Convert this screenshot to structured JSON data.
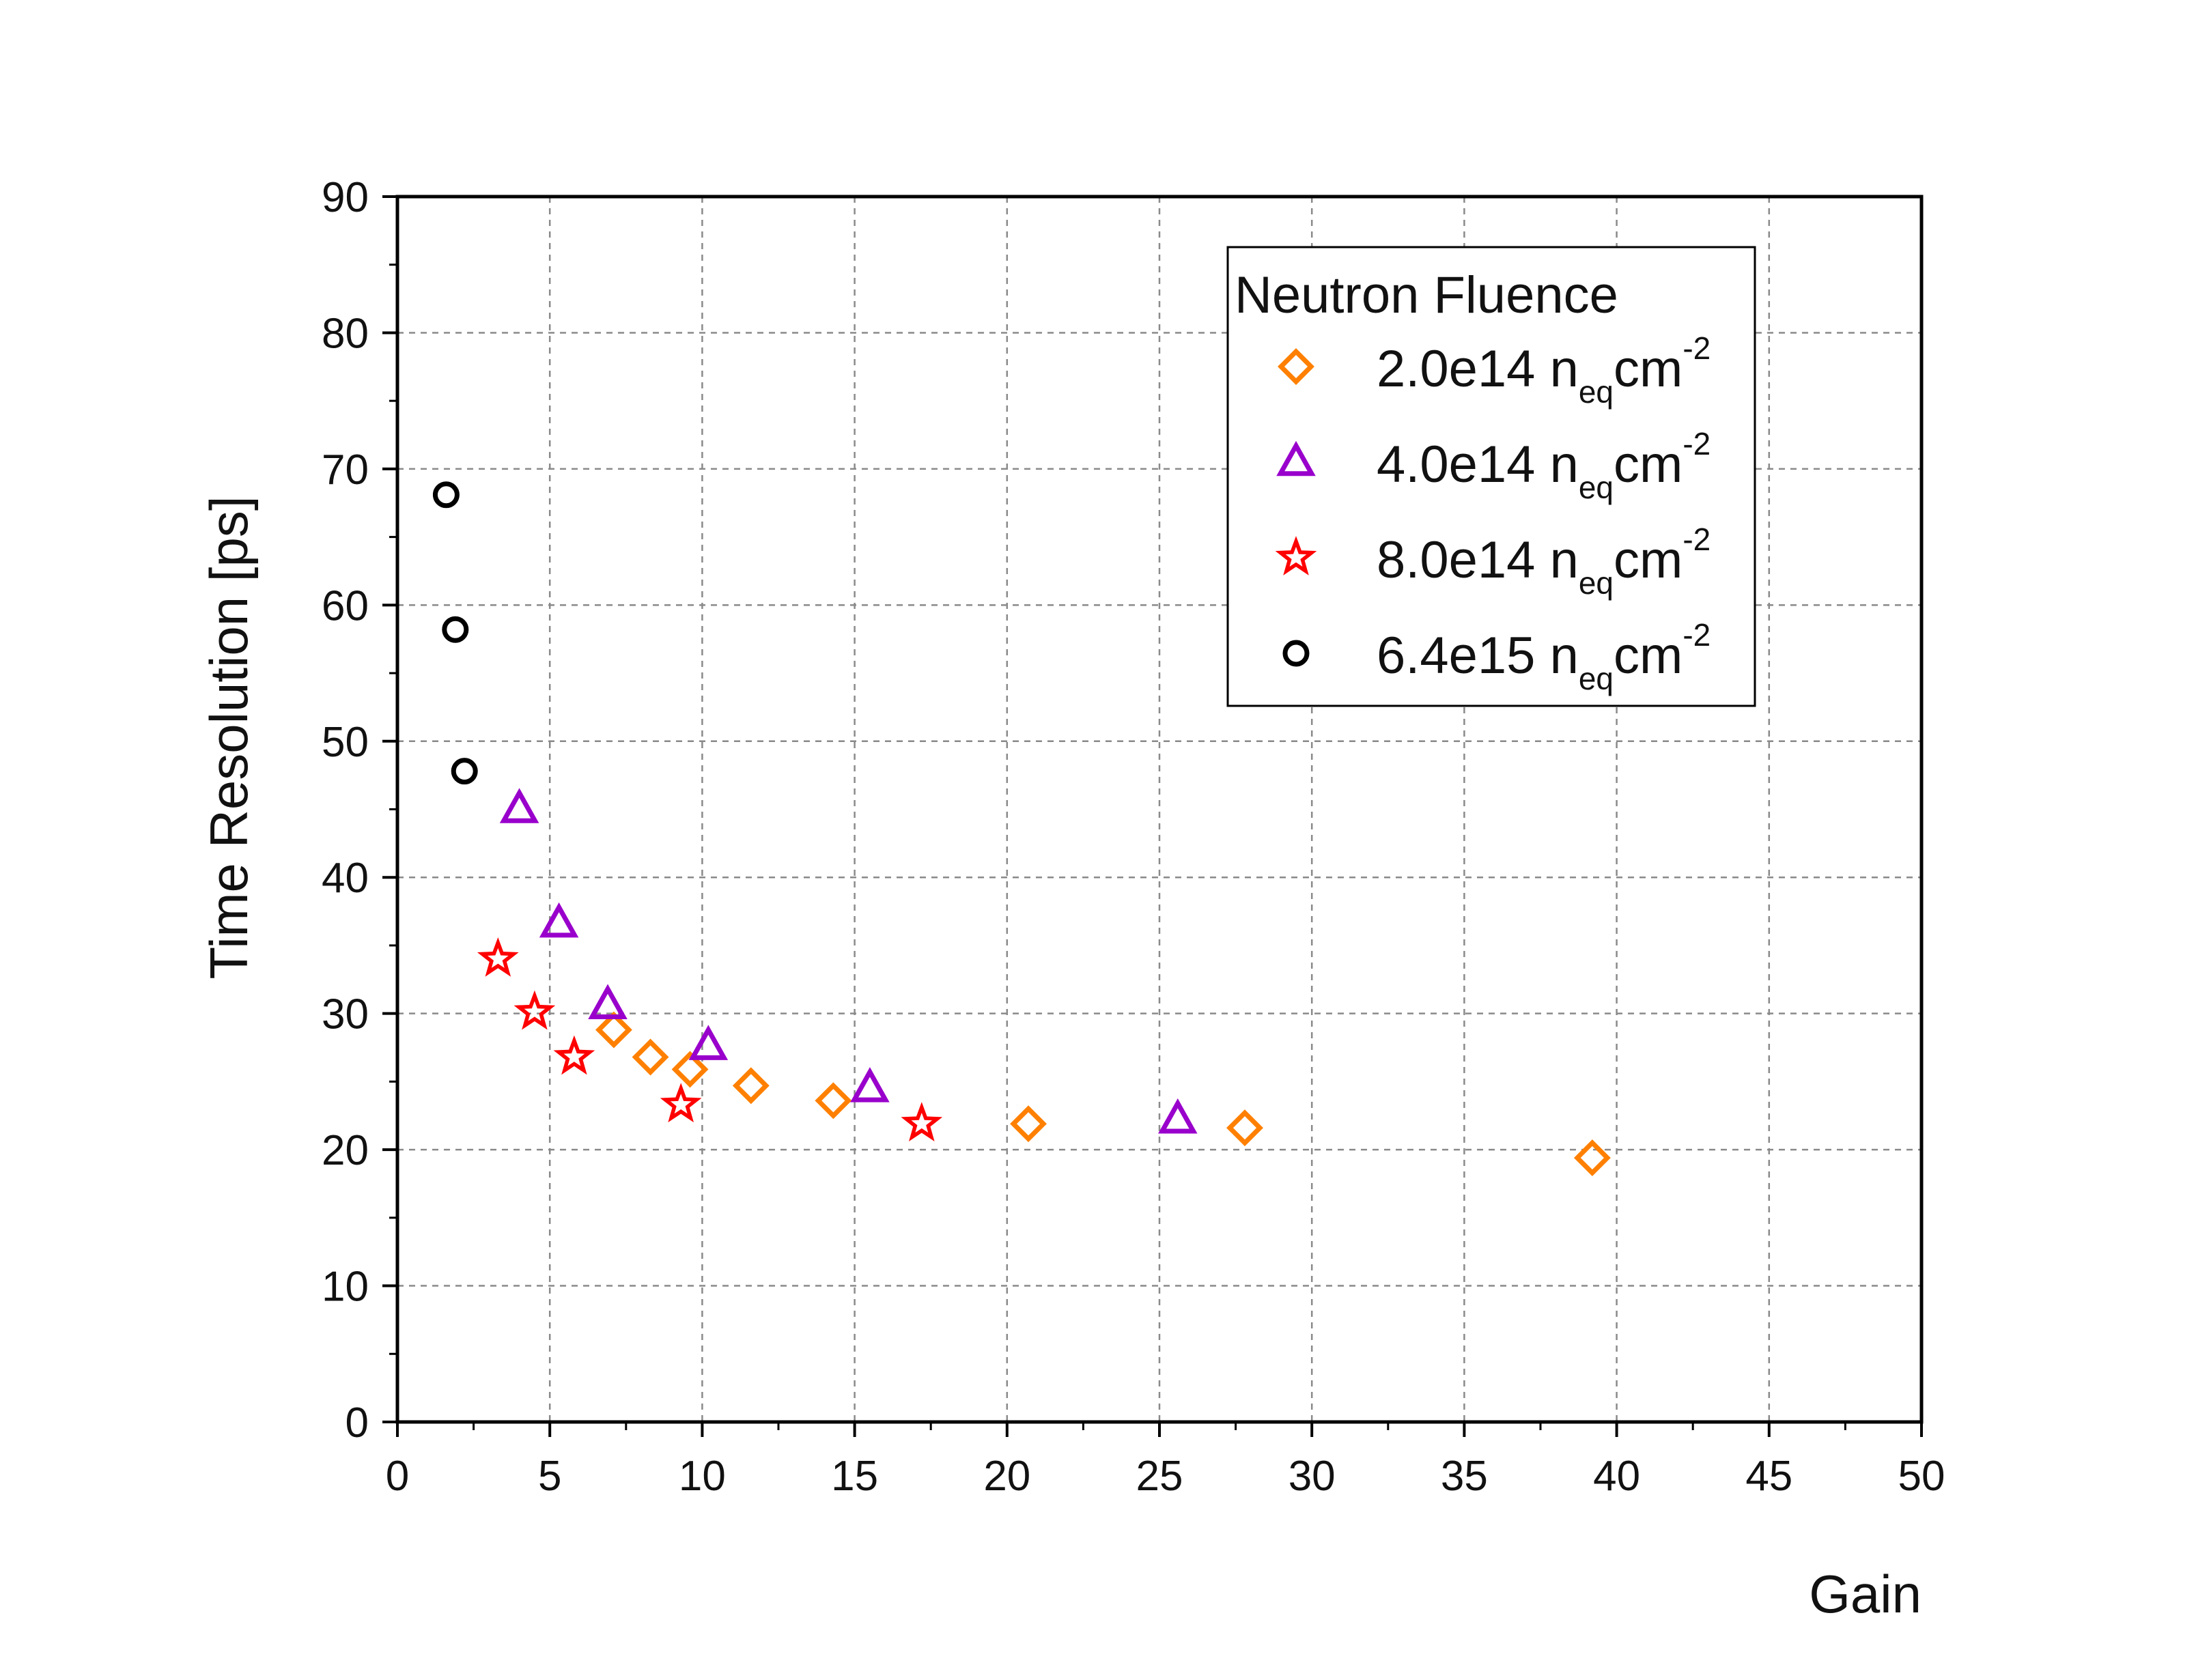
{
  "chart_data": {
    "type": "scatter",
    "xlabel": "Gain",
    "ylabel": "Time Resolution [ps]",
    "xlim": [
      0,
      50
    ],
    "ylim": [
      0,
      90
    ],
    "xticks": [
      0,
      5,
      10,
      15,
      20,
      25,
      30,
      35,
      40,
      45,
      50
    ],
    "yticks": [
      0,
      10,
      20,
      30,
      40,
      50,
      60,
      70,
      80,
      90
    ],
    "grid": true,
    "legend": {
      "title": "Neutron Fluence",
      "placement": "top-right"
    },
    "series": [
      {
        "label_main": "2.0e14 n",
        "label_sub": "eq",
        "label_unit": "cm",
        "label_sup": "-2",
        "marker": "diamond",
        "color": "#ff8000",
        "x": [
          7.1,
          8.3,
          9.6,
          11.6,
          14.3,
          20.7,
          27.8,
          39.2
        ],
        "y": [
          28.8,
          26.8,
          25.9,
          24.7,
          23.6,
          21.9,
          21.6,
          19.4
        ]
      },
      {
        "label_main": "4.0e14 n",
        "label_sub": "eq",
        "label_unit": "cm",
        "label_sup": "-2",
        "marker": "triangle",
        "color": "#9900cc",
        "x": [
          4.0,
          5.3,
          6.9,
          10.2,
          15.5,
          25.6
        ],
        "y": [
          45.0,
          36.6,
          30.6,
          27.6,
          24.5,
          22.2
        ]
      },
      {
        "label_main": "8.0e14 n",
        "label_sub": "eq",
        "label_unit": "cm",
        "label_sup": "-2",
        "marker": "star",
        "color": "#ff0000",
        "x": [
          3.3,
          4.5,
          5.8,
          9.3,
          17.2
        ],
        "y": [
          34.0,
          30.1,
          26.8,
          23.3,
          21.9
        ]
      },
      {
        "label_main": "6.4e15 n",
        "label_sub": "eq",
        "label_unit": "cm",
        "label_sup": "-2",
        "marker": "circle",
        "color": "#000000",
        "x": [
          1.6,
          1.9,
          2.2
        ],
        "y": [
          68.1,
          58.2,
          47.8
        ]
      }
    ]
  }
}
